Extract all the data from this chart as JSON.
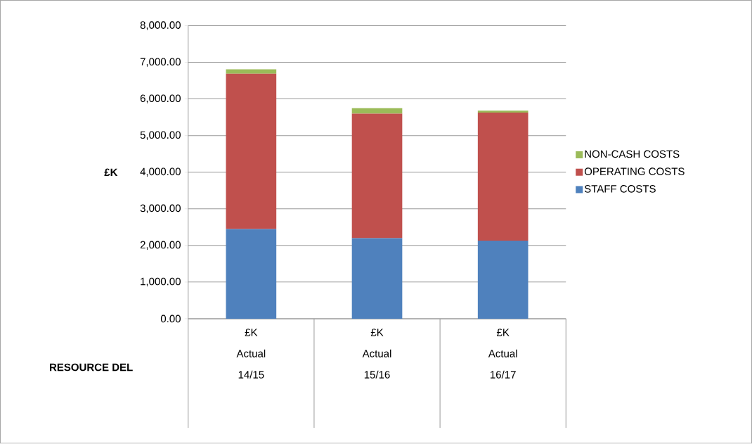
{
  "chart_data": {
    "type": "bar",
    "stacked": true,
    "categories": [
      "£K Actual 14/15",
      "£K Actual 15/16",
      "£K Actual 16/17"
    ],
    "xlabel": "RESOURCE DEL",
    "ylabel": "£K",
    "series": [
      {
        "name": "STAFF COSTS",
        "color": "#4f81bd",
        "values": [
          2450,
          2200,
          2130
        ]
      },
      {
        "name": "OPERATING COSTS",
        "color": "#c0504d",
        "values": [
          4240,
          3400,
          3500
        ]
      },
      {
        "name": "NON-CASH COSTS",
        "color": "#9bbb59",
        "values": [
          120,
          150,
          50
        ]
      }
    ],
    "ylim": [
      0,
      8000
    ],
    "yticks": [
      {
        "value": 0,
        "label": "0.00"
      },
      {
        "value": 1000,
        "label": "1,000.00"
      },
      {
        "value": 2000,
        "label": "2,000.00"
      },
      {
        "value": 3000,
        "label": "3,000.00"
      },
      {
        "value": 4000,
        "label": "4,000.00"
      },
      {
        "value": 5000,
        "label": "5,000.00"
      },
      {
        "value": 6000,
        "label": "6,000.00"
      },
      {
        "value": 7000,
        "label": "7,000.00"
      },
      {
        "value": 8000,
        "label": "8,000.00"
      }
    ],
    "grid": "y",
    "legend": "right"
  }
}
